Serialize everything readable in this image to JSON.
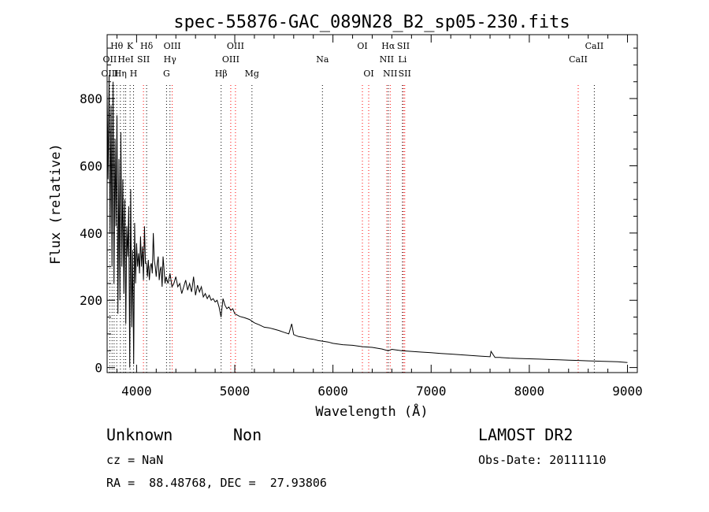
{
  "chart_data": {
    "type": "line",
    "title": "spec-55876-GAC_089N28_B2_sp05-230.fits",
    "xlabel": "Wavelength (Å)",
    "ylabel": "Flux (relative)",
    "xlim": [
      3700,
      9100
    ],
    "ylim": [
      -15,
      990
    ],
    "xticks": [
      4000,
      5000,
      6000,
      7000,
      8000,
      9000
    ],
    "yticks": [
      0,
      200,
      400,
      600,
      800
    ],
    "series": [
      {
        "x": [
          3700,
          3710,
          3720,
          3730,
          3740,
          3750,
          3760,
          3770,
          3780,
          3790,
          3800,
          3810,
          3820,
          3830,
          3840,
          3850,
          3860,
          3870,
          3880,
          3890,
          3900,
          3910,
          3920,
          3930,
          3940,
          3950,
          3960,
          3970,
          3980,
          3990,
          4000,
          4010,
          4020,
          4030,
          4040,
          4050,
          4060,
          4070,
          4080,
          4090,
          4100,
          4110,
          4120,
          4130,
          4140,
          4150,
          4160,
          4170,
          4180,
          4190,
          4200,
          4210,
          4220,
          4230,
          4240,
          4250,
          4260,
          4270,
          4280,
          4290,
          4300,
          4320,
          4340,
          4360,
          4380,
          4400,
          4420,
          4440,
          4460,
          4480,
          4500,
          4520,
          4540,
          4560,
          4580,
          4600,
          4620,
          4640,
          4660,
          4680,
          4700,
          4720,
          4740,
          4760,
          4780,
          4800,
          4820,
          4840,
          4860,
          4880,
          4900,
          4920,
          4940,
          4960,
          4980,
          5000,
          5050,
          5100,
          5150,
          5200,
          5250,
          5300,
          5350,
          5400,
          5450,
          5500,
          5550,
          5580,
          5600,
          5650,
          5700,
          5750,
          5800,
          5850,
          5900,
          5950,
          6000,
          6100,
          6200,
          6300,
          6400,
          6500,
          6563,
          6600,
          6700,
          6800,
          6900,
          7000,
          7100,
          7200,
          7300,
          7400,
          7500,
          7600,
          7610,
          7650,
          7700,
          7800,
          7900,
          8000,
          8100,
          8200,
          8300,
          8400,
          8500,
          8600,
          8700,
          8800,
          8900,
          9000
        ],
        "values": [
          820,
          560,
          870,
          400,
          780,
          300,
          850,
          250,
          680,
          420,
          750,
          160,
          620,
          200,
          700,
          300,
          560,
          220,
          500,
          130,
          420,
          330,
          480,
          0,
          530,
          120,
          350,
          10,
          430,
          250,
          370,
          300,
          340,
          280,
          390,
          300,
          360,
          260,
          420,
          310,
          310,
          270,
          320,
          260,
          300,
          310,
          280,
          400,
          320,
          300,
          270,
          310,
          330,
          260,
          290,
          300,
          240,
          330,
          290,
          250,
          270,
          250,
          280,
          240,
          250,
          270,
          240,
          250,
          220,
          240,
          260,
          230,
          250,
          225,
          270,
          215,
          245,
          225,
          240,
          210,
          220,
          205,
          215,
          200,
          205,
          195,
          200,
          180,
          150,
          205,
          185,
          175,
          180,
          170,
          175,
          160,
          152,
          148,
          143,
          133,
          127,
          120,
          118,
          114,
          110,
          105,
          100,
          130,
          98,
          92,
          90,
          86,
          84,
          80,
          78,
          76,
          72,
          68,
          66,
          62,
          60,
          55,
          50,
          54,
          50,
          48,
          46,
          44,
          42,
          40,
          38,
          36,
          34,
          32,
          48,
          30,
          30,
          28,
          27,
          26,
          25,
          24,
          23,
          22,
          21,
          20,
          19,
          18,
          17,
          15
        ]
      }
    ],
    "line_labels": [
      {
        "text": "Hθ",
        "x": 3798,
        "row": 0
      },
      {
        "text": "K",
        "x": 3934,
        "row": 0
      },
      {
        "text": "Hδ",
        "x": 4102,
        "row": 0
      },
      {
        "text": "OIII",
        "x": 4363,
        "row": 0
      },
      {
        "text": "OIII",
        "x": 5007,
        "row": 0
      },
      {
        "text": "OI",
        "x": 6300,
        "row": 0
      },
      {
        "text": "Hα",
        "x": 6563,
        "row": 0
      },
      {
        "text": "SII",
        "x": 6717,
        "row": 0
      },
      {
        "text": "CaII",
        "x": 8662,
        "row": 0
      },
      {
        "text": "OII",
        "x": 3727,
        "row": 1
      },
      {
        "text": "HeI",
        "x": 3889,
        "row": 1
      },
      {
        "text": "SII",
        "x": 4070,
        "row": 1
      },
      {
        "text": "Hγ",
        "x": 4340,
        "row": 1
      },
      {
        "text": "OIII",
        "x": 4959,
        "row": 1
      },
      {
        "text": "Na",
        "x": 5893,
        "row": 1
      },
      {
        "text": "NII",
        "x": 6548,
        "row": 1
      },
      {
        "text": "Li",
        "x": 6708,
        "row": 1
      },
      {
        "text": "CaII",
        "x": 8498,
        "row": 1
      },
      {
        "text": "OIII",
        "x": 3727,
        "row": 2
      },
      {
        "text": "Hη",
        "x": 3835,
        "row": 2
      },
      {
        "text": "H",
        "x": 3969,
        "row": 2
      },
      {
        "text": "G",
        "x": 4305,
        "row": 2
      },
      {
        "text": "Hβ",
        "x": 4861,
        "row": 2
      },
      {
        "text": "Mg",
        "x": 5175,
        "row": 2
      },
      {
        "text": "OI",
        "x": 6364,
        "row": 2
      },
      {
        "text": "NII",
        "x": 6583,
        "row": 2
      },
      {
        "text": "SII",
        "x": 6731,
        "row": 2
      }
    ],
    "line_markers": [
      {
        "x": 3727,
        "color": "#000000"
      },
      {
        "x": 3750,
        "color": "#000000"
      },
      {
        "x": 3771,
        "color": "#000000"
      },
      {
        "x": 3798,
        "color": "#000000"
      },
      {
        "x": 3835,
        "color": "#000000"
      },
      {
        "x": 3869,
        "color": "#000000"
      },
      {
        "x": 3889,
        "color": "#000000"
      },
      {
        "x": 3934,
        "color": "#000000"
      },
      {
        "x": 3969,
        "color": "#000000"
      },
      {
        "x": 4070,
        "color": "#ff0000"
      },
      {
        "x": 4102,
        "color": "#000000"
      },
      {
        "x": 4305,
        "color": "#000000"
      },
      {
        "x": 4340,
        "color": "#000000"
      },
      {
        "x": 4363,
        "color": "#ff0000"
      },
      {
        "x": 4861,
        "color": "#000000"
      },
      {
        "x": 4959,
        "color": "#ff0000"
      },
      {
        "x": 5007,
        "color": "#ff0000"
      },
      {
        "x": 5175,
        "color": "#000000"
      },
      {
        "x": 5893,
        "color": "#000000"
      },
      {
        "x": 6300,
        "color": "#ff0000"
      },
      {
        "x": 6364,
        "color": "#ff0000"
      },
      {
        "x": 6548,
        "color": "#ff0000"
      },
      {
        "x": 6563,
        "color": "#000000"
      },
      {
        "x": 6583,
        "color": "#ff0000"
      },
      {
        "x": 6708,
        "color": "#000000"
      },
      {
        "x": 6717,
        "color": "#ff0000"
      },
      {
        "x": 6731,
        "color": "#ff0000"
      },
      {
        "x": 8498,
        "color": "#ff0000"
      },
      {
        "x": 8662,
        "color": "#000000"
      }
    ],
    "grid": false,
    "legend": "none"
  },
  "footer": {
    "class_label": "Unknown",
    "subclass_label": "Non",
    "survey": "LAMOST DR2",
    "redshift": "cz = NaN",
    "obs_date": "Obs-Date: 20111110",
    "coords": "RA =  88.48768, DEC =  27.93806"
  }
}
